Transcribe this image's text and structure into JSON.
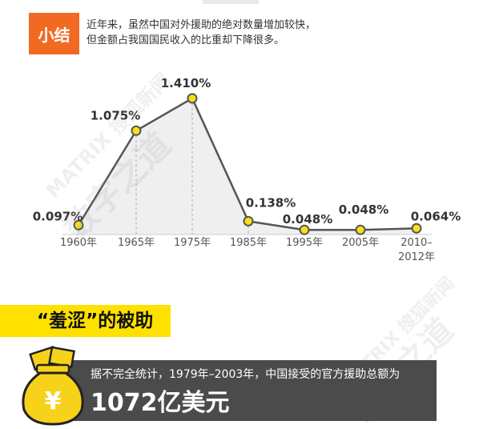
{
  "summary": {
    "badge": "小结",
    "line1": "近年来，虽然中国对外援助的绝对数量增加较快，",
    "line2": "但金额占我国国民收入的比重却下降很多。"
  },
  "chart_data": {
    "type": "line",
    "categories": [
      "1960年",
      "1965年",
      "1975年",
      "1985年",
      "1995年",
      "2005年",
      "2010–2012年"
    ],
    "category_lines": [
      [
        "1960年"
      ],
      [
        "1965年"
      ],
      [
        "1975年"
      ],
      [
        "1985年"
      ],
      [
        "1995年"
      ],
      [
        "2005年"
      ],
      [
        "2010–",
        "2012年"
      ]
    ],
    "values": [
      0.097,
      1.075,
      1.41,
      0.138,
      0.048,
      0.048,
      0.064
    ],
    "data_labels": [
      "0.097%",
      "1.075%",
      "1.410%",
      "0.138%",
      "0.048%",
      "0.048%",
      "0.064%"
    ],
    "title": "",
    "xlabel": "",
    "ylabel": "",
    "ylim": [
      0,
      1.5
    ],
    "grid": false,
    "legend": "none",
    "colors": {
      "line": "#555555",
      "marker": "#f7e01b",
      "marker_stroke": "#555555",
      "fill": "#efefef",
      "dash": "#aaaaaa"
    }
  },
  "section": {
    "title": "“羞涩”的被助"
  },
  "info": {
    "text": "据不完全统计，1979年–2003年，中国接受的官方援助总额为",
    "amount": "1072亿美元",
    "bag_symbol": "¥"
  },
  "watermarks": [
    "MATRIX 搜狐新闻",
    "数字之道"
  ],
  "colors": {
    "badge": "#f26a21",
    "section_bar": "#ffe100",
    "panel": "#4b4b4b",
    "bag": "#f7d21b"
  }
}
